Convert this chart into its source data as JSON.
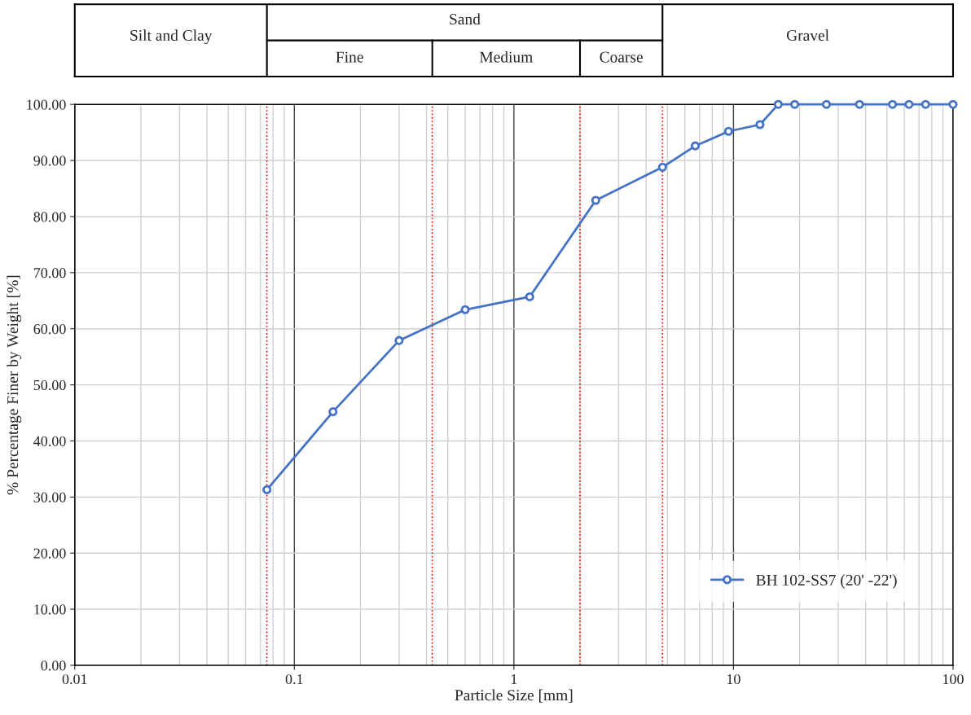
{
  "chart_data": {
    "type": "line",
    "xlabel": "Particle Size [mm]",
    "ylabel": "% Percentage Finer by Weight [%]",
    "log": "x",
    "grid": true,
    "legend": "bottom right",
    "marker": "circle",
    "line_style": "solid",
    "xlim": [
      0.01,
      100
    ],
    "xticks": [
      0.01,
      0.1,
      1,
      10,
      100
    ],
    "ylim": [
      0,
      100
    ],
    "yticks": [
      {
        "value": 0,
        "label": "0.00"
      },
      {
        "value": 10,
        "label": "10.00"
      },
      {
        "value": 20,
        "label": "20.00"
      },
      {
        "value": 30,
        "label": "30.00"
      },
      {
        "value": 40,
        "label": "40.00"
      },
      {
        "value": 50,
        "label": "50.00"
      },
      {
        "value": 60,
        "label": "60.00"
      },
      {
        "value": 70,
        "label": "70.00"
      },
      {
        "value": 80,
        "label": "80.00"
      },
      {
        "value": 90,
        "label": "90.00"
      },
      {
        "value": 100,
        "label": "100.00"
      }
    ],
    "series": [
      {
        "name": "BH 102-SS7 (20' -22')",
        "color": "#4472c4",
        "x": [
          0.075,
          0.15,
          0.3,
          0.6,
          1.18,
          2.36,
          4.75,
          6.7,
          9.5,
          13.2,
          16,
          19,
          26.5,
          37.5,
          53,
          63,
          75,
          100
        ],
        "values": [
          31.3,
          45.2,
          57.9,
          63.4,
          65.7,
          82.9,
          88.8,
          92.6,
          95.2,
          96.4,
          100,
          100,
          100,
          100,
          100,
          100,
          100,
          100
        ]
      }
    ],
    "ref_lines": [
      {
        "axis": "x",
        "value": 0.075,
        "color": "#ff0000",
        "line_style": "dotted"
      },
      {
        "axis": "x",
        "value": 0.425,
        "color": "#ff0000",
        "line_style": "dotted"
      },
      {
        "axis": "x",
        "value": 2,
        "color": "#ff0000",
        "line_style": "dotted"
      },
      {
        "axis": "x",
        "value": 4.75,
        "color": "#ff0000",
        "line_style": "dotted"
      }
    ],
    "annotations": [
      "Silt and Clay",
      "Sand",
      "Fine",
      "Medium",
      "Coarse",
      "Gravel"
    ]
  }
}
